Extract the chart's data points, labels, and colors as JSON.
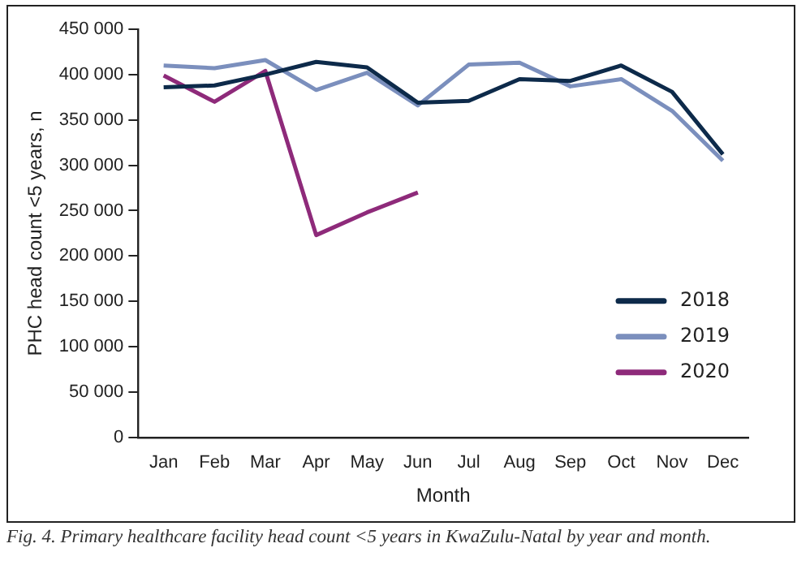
{
  "chart_data": {
    "type": "line",
    "xlabel": "Month",
    "ylabel": "PHC head count <5 years, n",
    "categories": [
      "Jan",
      "Feb",
      "Mar",
      "Apr",
      "May",
      "Jun",
      "Jul",
      "Aug",
      "Sep",
      "Oct",
      "Nov",
      "Dec"
    ],
    "series": [
      {
        "name": "2018",
        "color": "#0d2a4a",
        "values": [
          386000,
          388000,
          400000,
          414000,
          408000,
          369000,
          371000,
          395000,
          393000,
          410000,
          381000,
          312000
        ]
      },
      {
        "name": "2019",
        "color": "#7b8fbd",
        "values": [
          410000,
          407000,
          416000,
          383000,
          402000,
          366000,
          411000,
          413000,
          387000,
          395000,
          360000,
          305000
        ]
      },
      {
        "name": "2020",
        "color": "#8e2a7a",
        "values": [
          399000,
          370000,
          404000,
          223000,
          248000,
          270000,
          null,
          null,
          null,
          null,
          null,
          null
        ]
      }
    ],
    "ylim": [
      0,
      450000
    ],
    "yticks": [
      {
        "value": 0,
        "label": "0"
      },
      {
        "value": 50000,
        "label": "50 000"
      },
      {
        "value": 100000,
        "label": "100 000"
      },
      {
        "value": 150000,
        "label": "150 000"
      },
      {
        "value": 200000,
        "label": "200 000"
      },
      {
        "value": 250000,
        "label": "250 000"
      },
      {
        "value": 300000,
        "label": "300 000"
      },
      {
        "value": 350000,
        "label": "350 000"
      },
      {
        "value": 400000,
        "label": "400 000"
      },
      {
        "value": 450000,
        "label": "450 000"
      }
    ],
    "grid": false,
    "legend": "bottom right",
    "marker": "none",
    "line_style": "solid",
    "annotations": [
      "Fig. 4. Primary healthcare facility head count <5 years in KwaZulu-Natal by year and month."
    ]
  }
}
